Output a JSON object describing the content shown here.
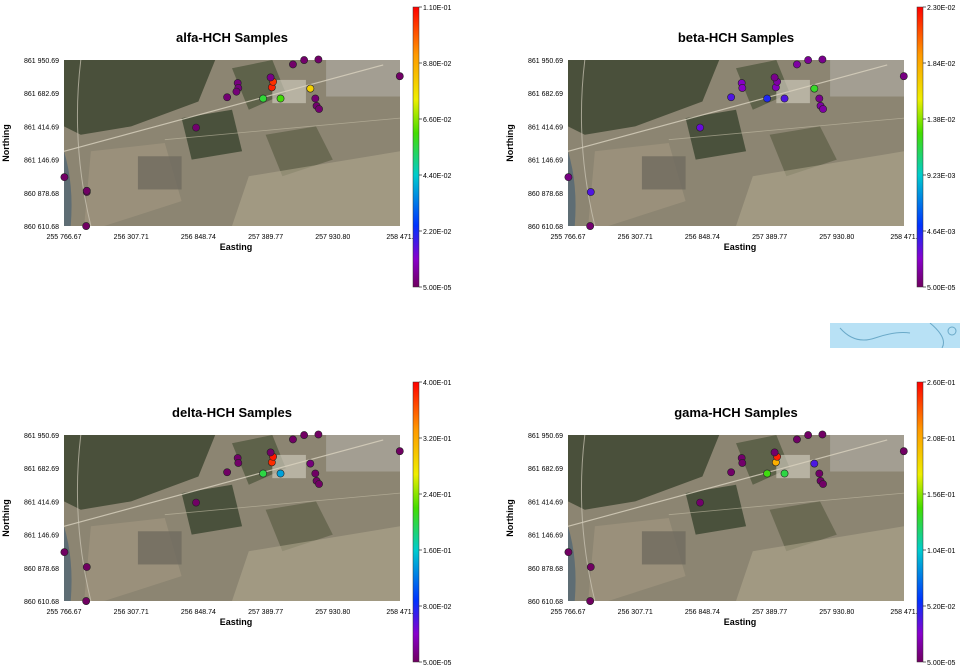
{
  "chart_data": [
    {
      "type": "scatter",
      "title": "alfa-HCH Samples",
      "xlabel": "Easting",
      "ylabel": "Northing",
      "x_ticks": [
        "255 766.67",
        "256 307.71",
        "256 848.74",
        "257 389.77",
        "257 930.80",
        "258 471."
      ],
      "y_ticks": [
        "861 950.69",
        "861 682.69",
        "861 414.69",
        "861 146.69",
        "860 878.68",
        "860 610.68"
      ],
      "xlim": [
        255766.67,
        258471.83
      ],
      "ylim": [
        860610.68,
        861950.69
      ],
      "colorbar_ticks": [
        "1.10E-01",
        "8.80E-02",
        "6.60E-02",
        "4.40E-02",
        "2.20E-02",
        "5.00E-05"
      ],
      "colorbar_range": [
        5e-05,
        0.11
      ],
      "points": [
        {
          "x": 255950,
          "y": 860885,
          "v": 5e-05
        },
        {
          "x": 255770,
          "y": 861005,
          "v": 0.0008
        },
        {
          "x": 255950,
          "y": 860895,
          "v": 0.0006
        },
        {
          "x": 255945,
          "y": 860610,
          "v": 0.0004
        },
        {
          "x": 256830,
          "y": 861405,
          "v": 0.0015
        },
        {
          "x": 257165,
          "y": 861765,
          "v": 0.003
        },
        {
          "x": 257170,
          "y": 861725,
          "v": 0.003
        },
        {
          "x": 257155,
          "y": 861695,
          "v": 0.0025
        },
        {
          "x": 257080,
          "y": 861650,
          "v": 0.002
        },
        {
          "x": 257370,
          "y": 861640,
          "v": 0.056
        },
        {
          "x": 257510,
          "y": 861640,
          "v": 0.06
        },
        {
          "x": 257440,
          "y": 861730,
          "v": 0.106
        },
        {
          "x": 257450,
          "y": 861775,
          "v": 0.104
        },
        {
          "x": 257750,
          "y": 861720,
          "v": 0.08
        },
        {
          "x": 257790,
          "y": 861640,
          "v": 0.002
        },
        {
          "x": 257800,
          "y": 861580,
          "v": 0.0015
        },
        {
          "x": 257820,
          "y": 861555,
          "v": 0.0015
        },
        {
          "x": 257430,
          "y": 861810,
          "v": 0.004
        },
        {
          "x": 257610,
          "y": 861915,
          "v": 0.001
        },
        {
          "x": 257700,
          "y": 861950,
          "v": 0.0012
        },
        {
          "x": 257815,
          "y": 861955,
          "v": 0.001
        },
        {
          "x": 258470,
          "y": 861820,
          "v": 0.0008
        }
      ]
    },
    {
      "type": "scatter",
      "title": "beta-HCH Samples",
      "xlabel": "Easting",
      "ylabel": "Northing",
      "x_ticks": [
        "255 766.67",
        "256 307.71",
        "256 848.74",
        "257 389.77",
        "257 930.80",
        "258 471."
      ],
      "y_ticks": [
        "861 950.69",
        "861 682.69",
        "861 414.69",
        "861 146.69",
        "860 878.68",
        "860 610.68"
      ],
      "xlim": [
        255766.67,
        258471.83
      ],
      "ylim": [
        860610.68,
        861950.69
      ],
      "colorbar_ticks": [
        "2.30E-02",
        "1.84E-02",
        "1.38E-02",
        "9.23E-03",
        "4.64E-03",
        "5.00E-05"
      ],
      "colorbar_range": [
        5e-05,
        0.023
      ],
      "points": [
        {
          "x": 255950,
          "y": 860885,
          "v": 0.0035
        },
        {
          "x": 255770,
          "y": 861005,
          "v": 0.0008
        },
        {
          "x": 255945,
          "y": 860610,
          "v": 0.0004
        },
        {
          "x": 256830,
          "y": 861405,
          "v": 0.003
        },
        {
          "x": 257165,
          "y": 861765,
          "v": 0.0022
        },
        {
          "x": 257170,
          "y": 861725,
          "v": 0.0022
        },
        {
          "x": 257080,
          "y": 861650,
          "v": 0.0035
        },
        {
          "x": 257370,
          "y": 861640,
          "v": 0.0045
        },
        {
          "x": 257510,
          "y": 861640,
          "v": 0.0035
        },
        {
          "x": 257440,
          "y": 861730,
          "v": 0.002
        },
        {
          "x": 257450,
          "y": 861775,
          "v": 0.0015
        },
        {
          "x": 257750,
          "y": 861720,
          "v": 0.012
        },
        {
          "x": 257790,
          "y": 861640,
          "v": 0.001
        },
        {
          "x": 257800,
          "y": 861580,
          "v": 0.0015
        },
        {
          "x": 257820,
          "y": 861555,
          "v": 0.0015
        },
        {
          "x": 257430,
          "y": 861810,
          "v": 0.001
        },
        {
          "x": 257610,
          "y": 861915,
          "v": 0.0015
        },
        {
          "x": 257700,
          "y": 861950,
          "v": 0.0012
        },
        {
          "x": 257815,
          "y": 861955,
          "v": 0.001
        },
        {
          "x": 258470,
          "y": 861820,
          "v": 0.0008
        }
      ]
    },
    {
      "type": "scatter",
      "title": "delta-HCH Samples",
      "xlabel": "Easting",
      "ylabel": "Northing",
      "x_ticks": [
        "255 766.67",
        "256 307.71",
        "256 848.74",
        "257 389.77",
        "257 930.80",
        "258 471."
      ],
      "y_ticks": [
        "861 950.69",
        "861 682.69",
        "861 414.69",
        "861 146.69",
        "860 878.68",
        "860 610.68"
      ],
      "xlim": [
        255766.67,
        258471.83
      ],
      "ylim": [
        860610.68,
        861950.69
      ],
      "colorbar_ticks": [
        "4.00E-01",
        "3.20E-01",
        "2.40E-01",
        "1.60E-01",
        "8.00E-02",
        "5.00E-05"
      ],
      "colorbar_range": [
        5e-05,
        0.4
      ],
      "points": [
        {
          "x": 255950,
          "y": 860885,
          "v": 0.0006
        },
        {
          "x": 255770,
          "y": 861005,
          "v": 0.0008
        },
        {
          "x": 255945,
          "y": 860610,
          "v": 0.0004
        },
        {
          "x": 256830,
          "y": 861405,
          "v": 0.002
        },
        {
          "x": 257165,
          "y": 861765,
          "v": 0.003
        },
        {
          "x": 257170,
          "y": 861725,
          "v": 0.003
        },
        {
          "x": 257080,
          "y": 861650,
          "v": 0.002
        },
        {
          "x": 257370,
          "y": 861640,
          "v": 0.2
        },
        {
          "x": 257510,
          "y": 861640,
          "v": 0.14
        },
        {
          "x": 257440,
          "y": 861730,
          "v": 0.38
        },
        {
          "x": 257450,
          "y": 861775,
          "v": 0.39
        },
        {
          "x": 257750,
          "y": 861720,
          "v": 0.01
        },
        {
          "x": 257790,
          "y": 861640,
          "v": 0.002
        },
        {
          "x": 257800,
          "y": 861580,
          "v": 0.002
        },
        {
          "x": 257820,
          "y": 861555,
          "v": 0.0015
        },
        {
          "x": 257430,
          "y": 861810,
          "v": 0.003
        },
        {
          "x": 257610,
          "y": 861915,
          "v": 0.0015
        },
        {
          "x": 257700,
          "y": 861950,
          "v": 0.0012
        },
        {
          "x": 257815,
          "y": 861955,
          "v": 0.001
        },
        {
          "x": 258470,
          "y": 861820,
          "v": 0.0008
        }
      ]
    },
    {
      "type": "scatter",
      "title": "gama-HCH Samples",
      "xlabel": "Easting",
      "ylabel": "Northing",
      "x_ticks": [
        "255 766.67",
        "256 307.71",
        "256 848.74",
        "257 389.77",
        "257 930.80",
        "258 471."
      ],
      "y_ticks": [
        "861 950.69",
        "861 682.69",
        "861 414.69",
        "861 146.69",
        "860 878.68",
        "860 610.68"
      ],
      "xlim": [
        255766.67,
        258471.83
      ],
      "ylim": [
        860610.68,
        861950.69
      ],
      "colorbar_ticks": [
        "2.60E-01",
        "2.08E-01",
        "1.56E-01",
        "1.04E-01",
        "5.20E-02",
        "5.00E-05"
      ],
      "colorbar_range": [
        5e-05,
        0.26
      ],
      "points": [
        {
          "x": 255950,
          "y": 860885,
          "v": 0.0006
        },
        {
          "x": 255770,
          "y": 861005,
          "v": 0.0008
        },
        {
          "x": 255945,
          "y": 860610,
          "v": 0.0004
        },
        {
          "x": 256830,
          "y": 861405,
          "v": 0.003
        },
        {
          "x": 257165,
          "y": 861765,
          "v": 0.0025
        },
        {
          "x": 257170,
          "y": 861725,
          "v": 0.0025
        },
        {
          "x": 257080,
          "y": 861650,
          "v": 0.002
        },
        {
          "x": 257370,
          "y": 861640,
          "v": 0.14
        },
        {
          "x": 257510,
          "y": 861640,
          "v": 0.13
        },
        {
          "x": 257440,
          "y": 861730,
          "v": 0.205
        },
        {
          "x": 257450,
          "y": 861775,
          "v": 0.25
        },
        {
          "x": 257750,
          "y": 861720,
          "v": 0.04
        },
        {
          "x": 257790,
          "y": 861640,
          "v": 0.002
        },
        {
          "x": 257800,
          "y": 861580,
          "v": 0.002
        },
        {
          "x": 257820,
          "y": 861555,
          "v": 0.0015
        },
        {
          "x": 257430,
          "y": 861810,
          "v": 0.003
        },
        {
          "x": 257610,
          "y": 861915,
          "v": 0.0015
        },
        {
          "x": 257700,
          "y": 861950,
          "v": 0.0012
        },
        {
          "x": 257815,
          "y": 861955,
          "v": 0.001
        },
        {
          "x": 258470,
          "y": 861820,
          "v": 0.0008
        }
      ]
    }
  ],
  "colors": {
    "colorbar": [
      "#ff0000",
      "#ff9900",
      "#eeee00",
      "#44dd00",
      "#00cccc",
      "#0033ff",
      "#8800cc",
      "#700060"
    ],
    "imagery_base": "#8c8572"
  }
}
